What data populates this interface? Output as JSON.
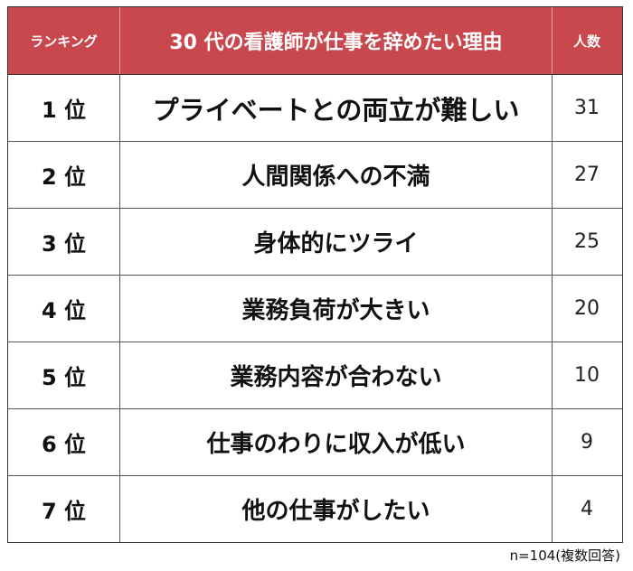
{
  "chart_data": {
    "type": "table",
    "columns": [
      "ランキング",
      "30 代の看護師が仕事を辞めたい理由",
      "人数"
    ],
    "rows": [
      {
        "rank": "1 位",
        "reason": "プライベートとの両立が難しい",
        "count": 31
      },
      {
        "rank": "2 位",
        "reason": "人間関係への不満",
        "count": 27
      },
      {
        "rank": "3 位",
        "reason": "身体的にツライ",
        "count": 25
      },
      {
        "rank": "4 位",
        "reason": "業務負荷が大きい",
        "count": 20
      },
      {
        "rank": "5 位",
        "reason": "業務内容が合わない",
        "count": 10
      },
      {
        "rank": "6 位",
        "reason": "仕事のわりに収入が低い",
        "count": 9
      },
      {
        "rank": "7 位",
        "reason": "他の仕事がしたい",
        "count": 4
      }
    ],
    "note": "n=104(複数回答)"
  },
  "colors": {
    "header_bg": "#c9484e",
    "header_text": "#ffffff"
  }
}
